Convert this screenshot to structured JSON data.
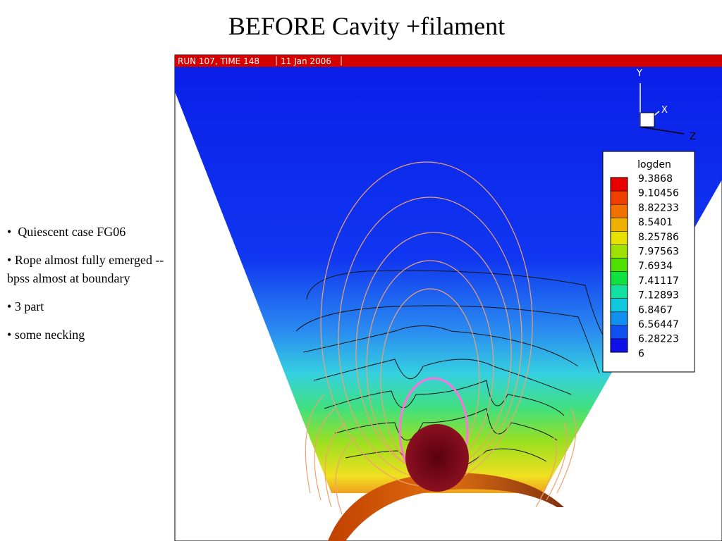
{
  "slide": {
    "title": "BEFORE Cavity +filament",
    "bullets": [
      "Quiescent case FG06",
      "Rope almost fully emerged -- bpss almost at boundary",
      "3 part",
      "some necking"
    ],
    "figure": {
      "header": [
        "RUN 107, TIME 148",
        "11 Jan 2006"
      ],
      "axes": [
        "Y",
        "X",
        "Z"
      ],
      "legend_title": "logden",
      "legend_labels": [
        "9.3868",
        "9.10456",
        "8.82233",
        "8.5401",
        "8.25786",
        "7.97563",
        "7.6934",
        "7.41117",
        "7.12893",
        "6.8467",
        "6.56447",
        "6.28223",
        "6"
      ]
    }
  }
}
